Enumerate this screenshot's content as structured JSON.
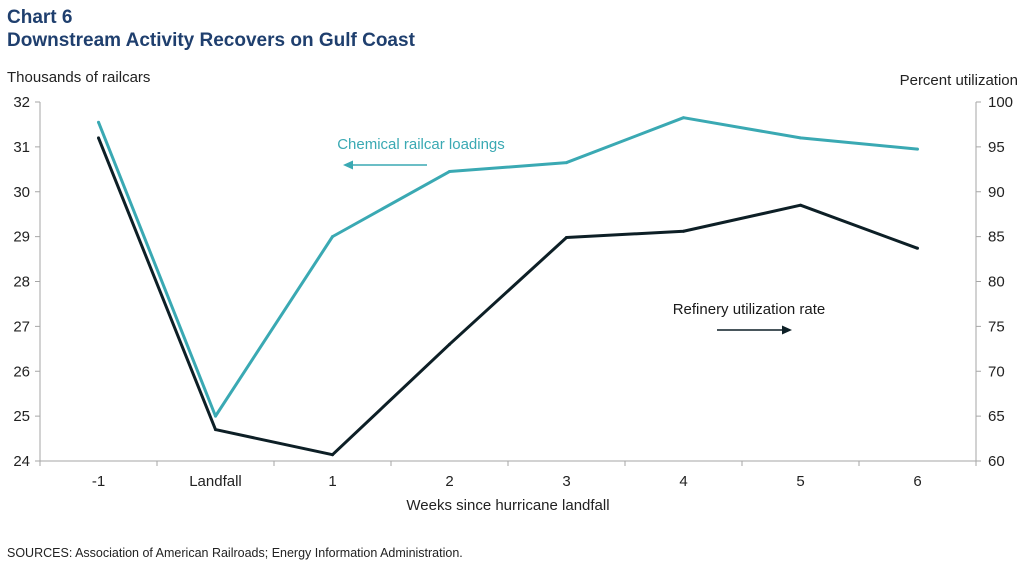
{
  "header": {
    "chart_number": "Chart 6",
    "title": "Downstream Activity Recovers on Gulf Coast"
  },
  "colors": {
    "chemical": "#3aa9b3",
    "refinery": "#0d1f26",
    "title": "#1f3f6e",
    "axis": "#a6a6a6"
  },
  "source_note": "SOURCES:  Association of American Railroads; Energy Information Administration.",
  "chart_data": {
    "type": "line",
    "x": [
      "-1",
      "Landfall",
      "1",
      "2",
      "3",
      "4",
      "5",
      "6"
    ],
    "xlabel": "Weeks since hurricane landfall",
    "ylabel_left": "Thousands  of railcars",
    "ylabel_right": "Percent  utilization",
    "ylim_left": [
      24,
      32
    ],
    "yticks_left": [
      24,
      25,
      26,
      27,
      28,
      29,
      30,
      31,
      32
    ],
    "ylim_right": [
      60,
      100
    ],
    "yticks_right": [
      60,
      65,
      70,
      75,
      80,
      85,
      90,
      95,
      100
    ],
    "grid": false,
    "series": [
      {
        "name": "Chemical  railcar loadings",
        "axis": "left",
        "values": [
          31.55,
          25.0,
          29.0,
          30.45,
          30.65,
          31.65,
          31.2,
          30.95
        ]
      },
      {
        "name": "Refinery  utilization  rate",
        "axis": "right",
        "values": [
          96.0,
          63.5,
          60.7,
          73.0,
          84.9,
          85.6,
          88.5,
          83.7
        ]
      }
    ]
  }
}
